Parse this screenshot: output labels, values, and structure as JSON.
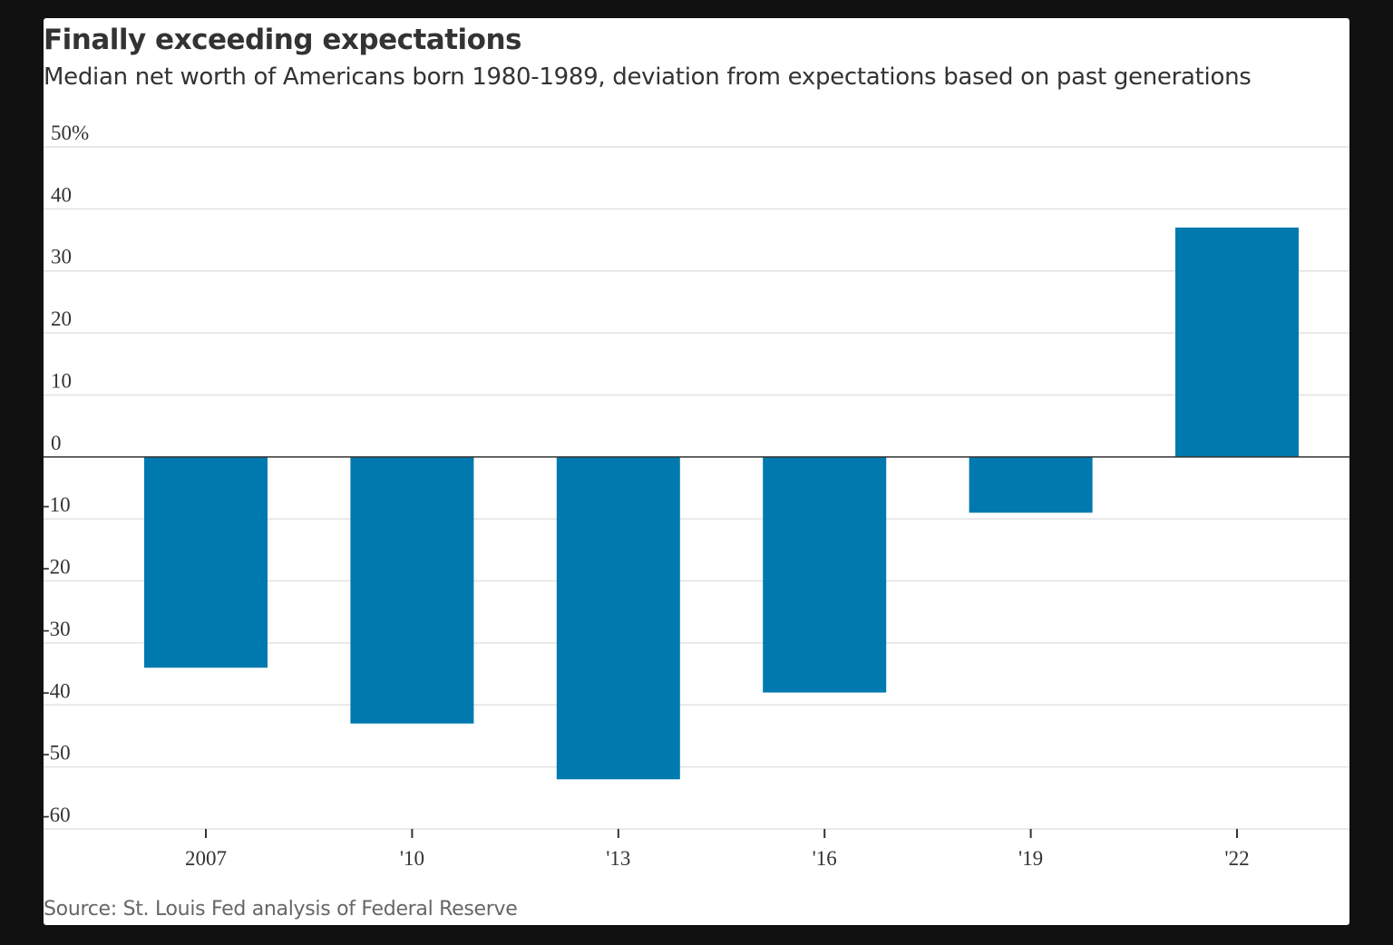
{
  "chart_data": {
    "type": "bar",
    "title": "Finally exceeding expectations",
    "subtitle": "Median net worth of Americans born 1980-1989, deviation from expectations based on past generations",
    "source": "Source: St. Louis Fed analysis of Federal Reserve",
    "categories": [
      "2007",
      "'10",
      "'13",
      "'16",
      "'19",
      "'22"
    ],
    "values": [
      -34,
      -43,
      -52,
      -38,
      -9,
      37
    ],
    "ylim": [
      -60,
      50
    ],
    "yticks": [
      50,
      40,
      30,
      20,
      10,
      0,
      -10,
      -20,
      -30,
      -40,
      -50,
      -60
    ],
    "ytick_labels": [
      "50%",
      "40",
      "30",
      "20",
      "10",
      "0",
      "-10",
      "-20",
      "-30",
      "-40",
      "-50",
      "-60"
    ],
    "xlabel": "",
    "ylabel": "",
    "grid": true,
    "colors": {
      "bar": "#0079ae",
      "grid": "#e2e2e2",
      "zero_line": "#333333",
      "background": "#ffffff",
      "frame": "#111111"
    }
  }
}
